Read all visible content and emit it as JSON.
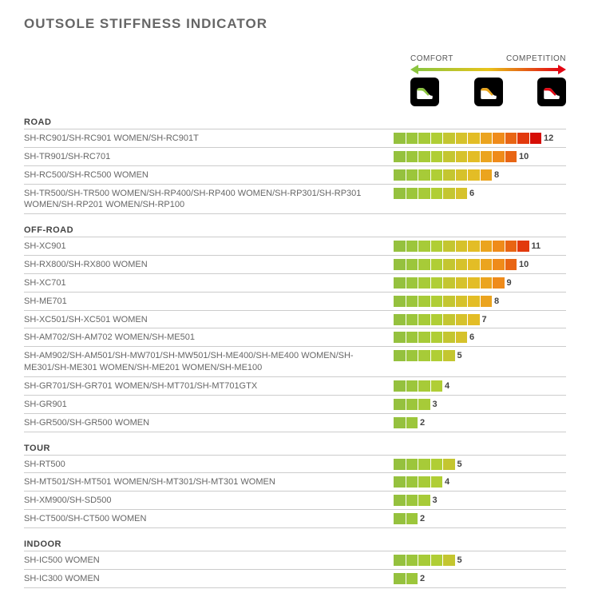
{
  "title": "OUTSOLE STIFFNESS INDICATOR",
  "scale": {
    "left_label": "COMFORT",
    "right_label": "COMPETITION",
    "max": 12,
    "colors": [
      "#95c13e",
      "#9cc63b",
      "#a7cb38",
      "#b0ce35",
      "#c4c630",
      "#d6c22b",
      "#e3bd26",
      "#eba41f",
      "#ef8b1a",
      "#e86514",
      "#e2390d",
      "#d60e06"
    ],
    "icon_colors": [
      "#8bc53f",
      "#e8a41a",
      "#e30613"
    ]
  },
  "categories": [
    {
      "name": "ROAD",
      "rows": [
        {
          "label": "SH-RC901/SH-RC901 WOMEN/SH-RC901T",
          "value": 12
        },
        {
          "label": "SH-TR901/SH-RC701",
          "value": 10
        },
        {
          "label": "SH-RC500/SH-RC500 WOMEN",
          "value": 8
        },
        {
          "label": "SH-TR500/SH-TR500 WOMEN/SH-RP400/SH-RP400 WOMEN/SH-RP301/SH-RP301 WOMEN/SH-RP201 WOMEN/SH-RP100",
          "value": 6
        }
      ]
    },
    {
      "name": "OFF-ROAD",
      "rows": [
        {
          "label": "SH-XC901",
          "value": 11
        },
        {
          "label": "SH-RX800/SH-RX800 WOMEN",
          "value": 10
        },
        {
          "label": "SH-XC701",
          "value": 9
        },
        {
          "label": "SH-ME701",
          "value": 8
        },
        {
          "label": "SH-XC501/SH-XC501 WOMEN",
          "value": 7
        },
        {
          "label": "SH-AM702/SH-AM702 WOMEN/SH-ME501",
          "value": 6
        },
        {
          "label": "SH-AM902/SH-AM501/SH-MW701/SH-MW501/SH-ME400/SH-ME400 WOMEN/SH-ME301/SH-ME301 WOMEN/SH-ME201 WOMEN/SH-ME100",
          "value": 5
        },
        {
          "label": "SH-GR701/SH-GR701 WOMEN/SH-MT701/SH-MT701GTX",
          "value": 4
        },
        {
          "label": "SH-GR901",
          "value": 3
        },
        {
          "label": "SH-GR500/SH-GR500 WOMEN",
          "value": 2
        }
      ]
    },
    {
      "name": "TOUR",
      "rows": [
        {
          "label": "SH-RT500",
          "value": 5
        },
        {
          "label": "SH-MT501/SH-MT501 WOMEN/SH-MT301/SH-MT301 WOMEN",
          "value": 4
        },
        {
          "label": "SH-XM900/SH-SD500",
          "value": 3
        },
        {
          "label": "SH-CT500/SH-CT500 WOMEN",
          "value": 2
        }
      ]
    },
    {
      "name": "INDOOR",
      "rows": [
        {
          "label": "SH-IC500 WOMEN",
          "value": 5
        },
        {
          "label": "SH-IC300 WOMEN",
          "value": 2
        }
      ]
    }
  ]
}
